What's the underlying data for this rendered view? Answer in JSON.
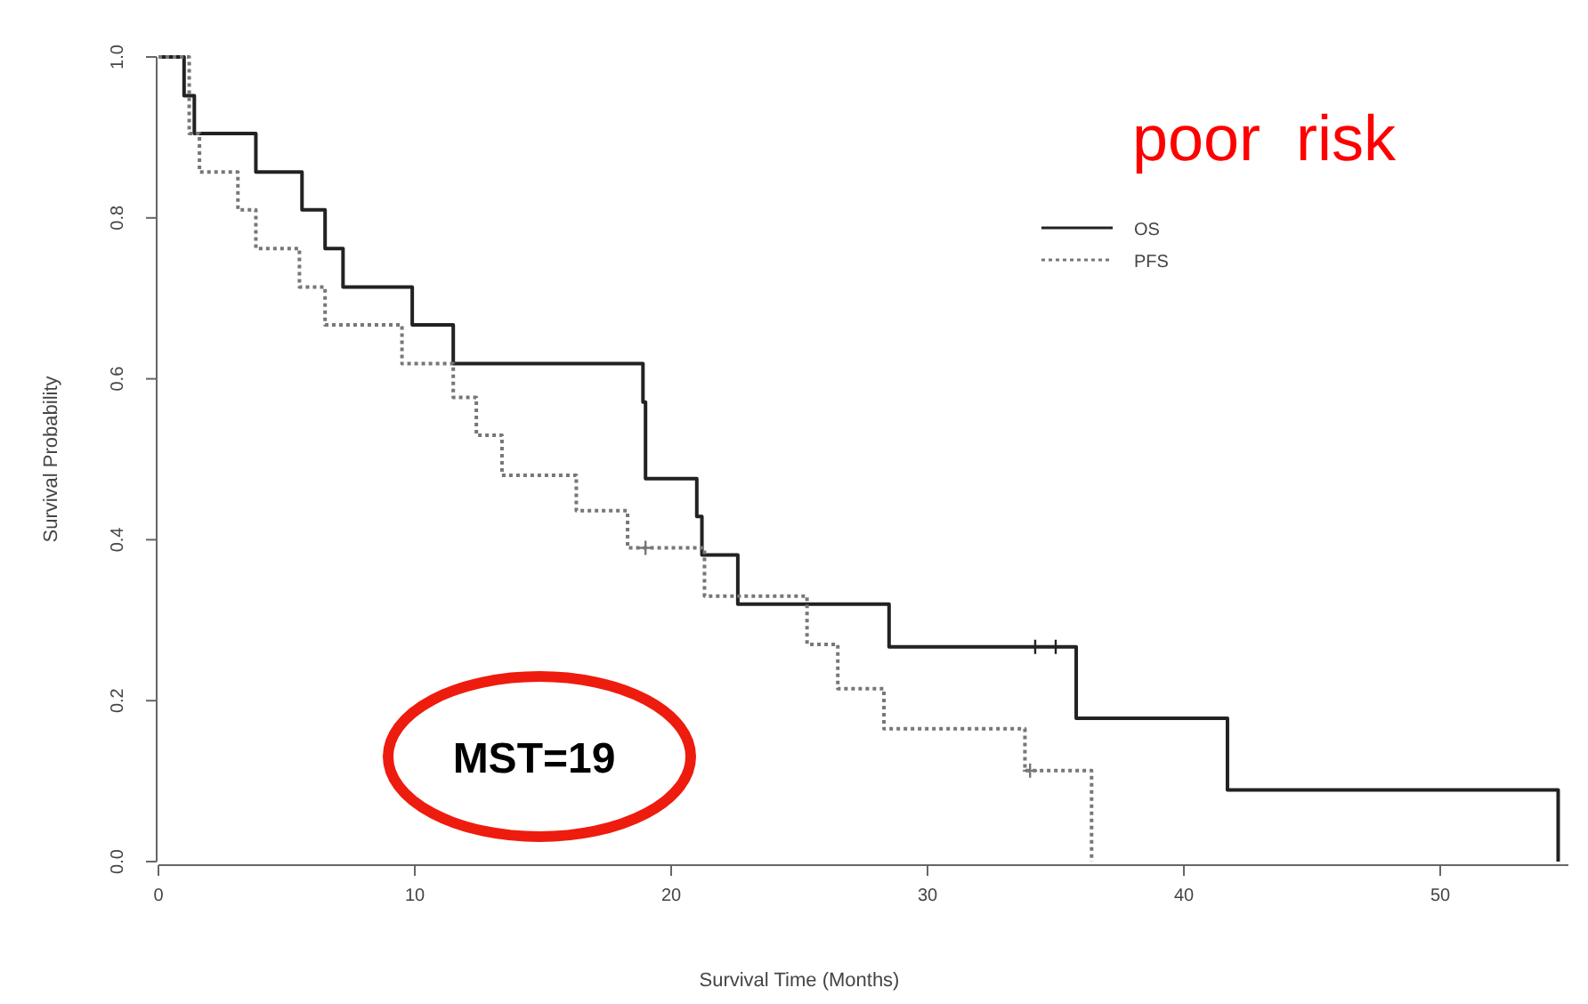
{
  "chart_data": {
    "type": "step",
    "xlabel": "Survival Time (Months)",
    "ylabel": "Survival Probability",
    "xlim": [
      0,
      55
    ],
    "ylim": [
      0,
      1
    ],
    "xticks": [
      0,
      10,
      20,
      30,
      40,
      50
    ],
    "yticks": [
      {
        "value": 0,
        "label": "0.0"
      },
      0.2,
      0.4,
      0.6,
      0.8,
      {
        "value": 1,
        "label": "1.0"
      }
    ],
    "legend": "top right",
    "grid": false,
    "series": [
      {
        "name": "OS",
        "color": "#222222",
        "line_style": "solid",
        "x": [
          0,
          1.0,
          1.4,
          3.8,
          5.6,
          6.5,
          7.2,
          9.9,
          11.5,
          18.9,
          19.0,
          21.0,
          21.2,
          22.6,
          28.5,
          35.8,
          41.7,
          54.6
        ],
        "values": [
          1,
          0.952,
          0.905,
          0.857,
          0.81,
          0.762,
          0.714,
          0.667,
          0.619,
          0.571,
          0.476,
          0.429,
          0.381,
          0.32,
          0.267,
          0.178,
          0.089,
          0
        ]
      },
      {
        "name": "PFS",
        "color": "#777777",
        "line_style": "dotted",
        "x": [
          0,
          1.2,
          1.6,
          3.1,
          3.8,
          5.5,
          6.5,
          9.5,
          11.5,
          12.4,
          13.4,
          16.3,
          18.3,
          21.3,
          25.3,
          26.5,
          28.3,
          33.8,
          36.4
        ],
        "values": [
          1,
          0.905,
          0.857,
          0.81,
          0.762,
          0.714,
          0.667,
          0.619,
          0.577,
          0.53,
          0.48,
          0.436,
          0.39,
          0.33,
          0.27,
          0.215,
          0.165,
          0.113,
          0
        ]
      },
      {
        "type": "scatter",
        "marker": "cross",
        "color": "#222222",
        "x": [
          34.2,
          35.0
        ],
        "values": [
          0.267,
          0.267
        ]
      },
      {
        "type": "scatter",
        "marker": "cross",
        "color": "#777777",
        "x": [
          19.0,
          34.0
        ],
        "values": [
          0.39,
          0.113
        ]
      }
    ],
    "annotations": [
      "poor  risk",
      "MST=19"
    ]
  }
}
